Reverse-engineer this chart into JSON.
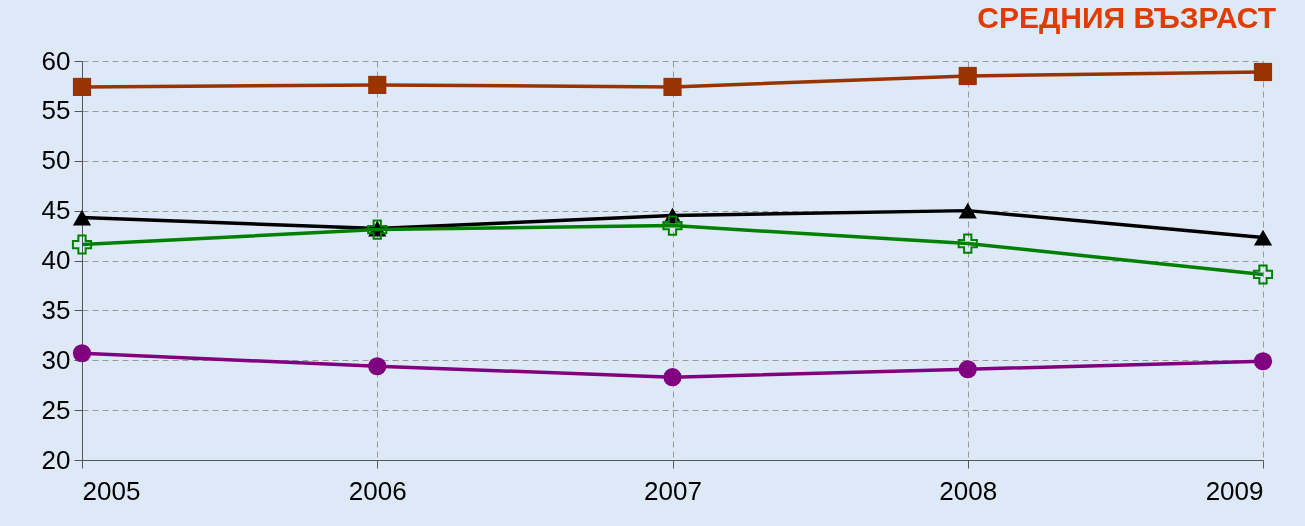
{
  "chart_data": {
    "type": "line",
    "title": "СРЕДНИЯ ВЪЗРАСТ",
    "categories": [
      "2005",
      "2006",
      "2007",
      "2008",
      "2009"
    ],
    "series": [
      {
        "color": "#993300",
        "marker": "square",
        "values": [
          57.4,
          57.6,
          57.4,
          58.5,
          58.9
        ]
      },
      {
        "color": "#000000",
        "marker": "triangle",
        "values": [
          44.3,
          43.2,
          44.5,
          45.0,
          42.3
        ]
      },
      {
        "color": "#008000",
        "marker": "cross",
        "values": [
          41.6,
          43.1,
          43.5,
          41.7,
          38.6
        ]
      },
      {
        "color": "#800080",
        "marker": "circle",
        "values": [
          30.7,
          29.4,
          28.3,
          29.1,
          29.9
        ]
      }
    ],
    "ylim": [
      20,
      60
    ],
    "yticks": [
      20,
      25,
      30,
      35,
      40,
      45,
      50,
      55,
      60
    ],
    "grid": true,
    "line_style": "solid"
  }
}
